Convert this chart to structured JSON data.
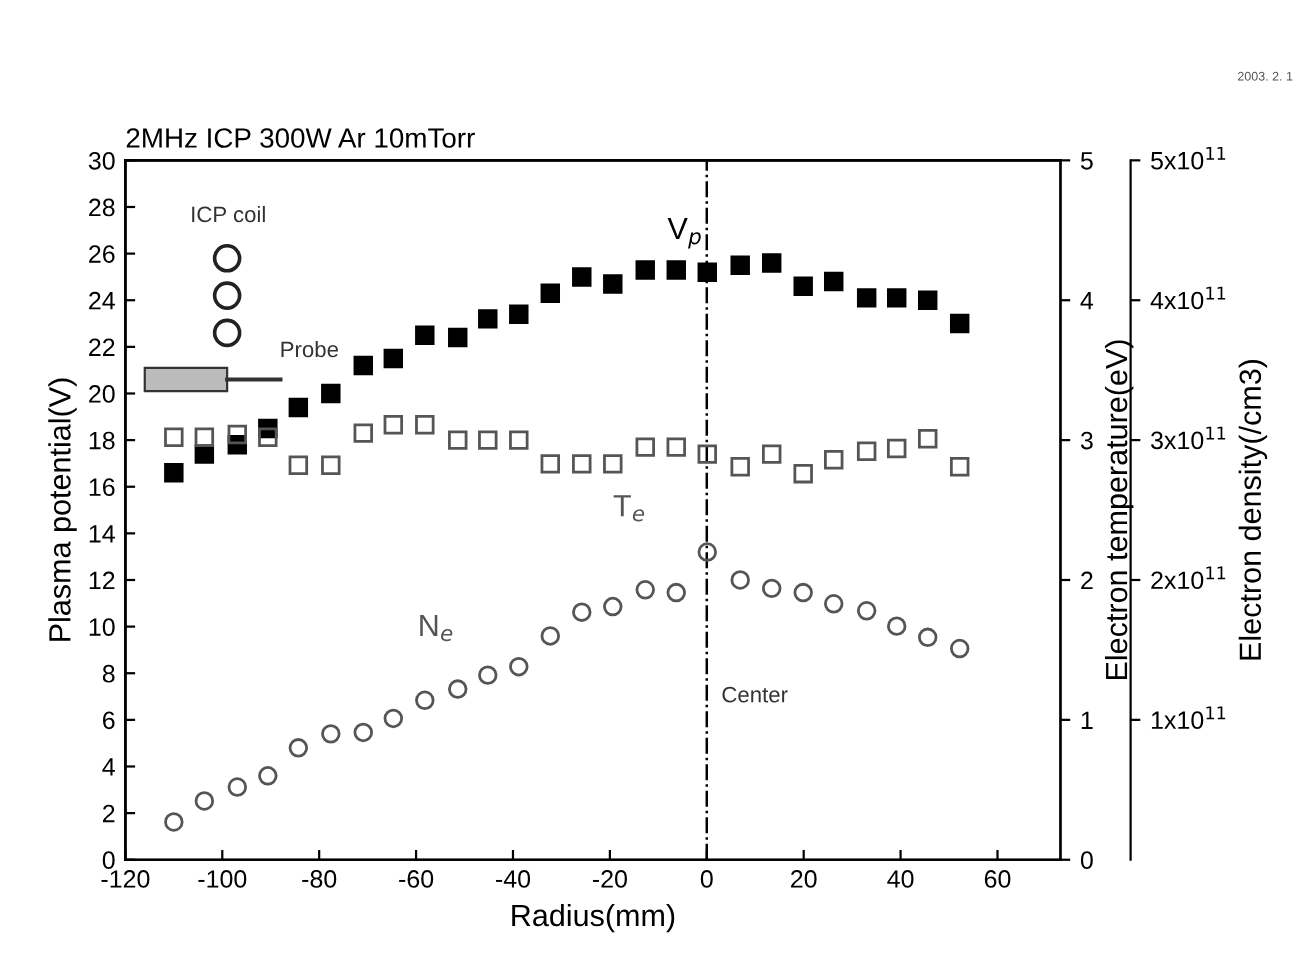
{
  "chart_data": {
    "type": "scatter",
    "title": "2MHz ICP 300W Ar 10mTorr",
    "xlabel": "Radius(mm)",
    "ylabel": "Plasma potential(V)",
    "y2label": "Electron temperature(eV)",
    "y3label": "Electron density(/cm3)",
    "x": [
      -110,
      -103.7,
      -96.9,
      -90.6,
      -84.3,
      -77.6,
      -70.9,
      -64.7,
      -58.2,
      -51.4,
      -45.2,
      -38.8,
      -32.3,
      -25.8,
      -19.4,
      -12.7,
      -6.3,
      0.1,
      6.9,
      13.4,
      19.9,
      26.2,
      33.0,
      39.2,
      45.6,
      52.2
    ],
    "series": [
      {
        "name": "V$_{p}$",
        "color": "#000000",
        "marker": "square",
        "values": [
          16.6,
          17.4,
          17.8,
          18.5,
          19.4,
          20.0,
          21.2,
          21.5,
          22.5,
          22.4,
          23.2,
          23.4,
          24.3,
          25.0,
          24.7,
          25.3,
          25.3,
          25.2,
          25.5,
          25.6,
          24.6,
          24.8,
          24.1,
          24.1,
          24.0,
          23.0
        ]
      },
      {
        "name": "T$_{e}$",
        "color": "#555555",
        "marker": "square",
        "axis": "y2",
        "values": [
          3.02,
          3.02,
          3.04,
          3.02,
          2.82,
          2.82,
          3.05,
          3.11,
          3.11,
          3.0,
          3.0,
          3.0,
          2.83,
          2.83,
          2.83,
          2.95,
          2.95,
          2.9,
          2.81,
          2.9,
          2.76,
          2.86,
          2.92,
          2.94,
          3.01,
          2.81
        ]
      },
      {
        "name": "N$_{e}$",
        "color": "#555555",
        "marker": "circle",
        "axis": "y3",
        "values": [
          27000000000.0,
          42000000000.0,
          52000000000.0,
          60000000000.0,
          80000000000.0,
          90000000000.0,
          91000000000.0,
          101000000000.0,
          114000000000.0,
          122000000000.0,
          132000000000.0,
          138000000000.0,
          160000000000.0,
          177000000000.0,
          181000000000.0,
          193000000000.0,
          191000000000.0,
          220000000000.0,
          200000000000.0,
          194000000000.0,
          191000000000.0,
          183000000000.0,
          178000000000.0,
          167000000000.0,
          159000000000.0,
          151000000000.0
        ]
      }
    ],
    "xlim": [
      -120,
      73
    ],
    "xticks": [
      -120,
      -100,
      -80,
      -60,
      -40,
      -20,
      0,
      20,
      40,
      60
    ],
    "ylim": [
      0,
      30
    ],
    "yticks": [
      0,
      2,
      4,
      6,
      8,
      10,
      12,
      14,
      16,
      18,
      20,
      22,
      24,
      26,
      28,
      30
    ],
    "y2lim": [
      0,
      5
    ],
    "y2ticks": [
      0,
      1,
      2,
      3,
      4,
      5
    ],
    "y3lim": [
      0,
      500000000000.0
    ],
    "y3ticks": [
      {
        "value": 100000000000.0,
        "label": "1x10$^{11}$"
      },
      {
        "value": 200000000000.0,
        "label": "2x10$^{11}$"
      },
      {
        "value": 300000000000.0,
        "label": "3x10$^{11}$"
      },
      {
        "value": 400000000000.0,
        "label": "4x10$^{11}$"
      },
      {
        "value": 500000000000.0,
        "label": "5x10$^{11}$"
      }
    ],
    "ref_lines": [
      {
        "axis": "x",
        "value": 0,
        "line_style": "dashdot",
        "color": "#000000",
        "label": "Center"
      }
    ],
    "annotations": [
      "ICP coil",
      "Probe",
      "2003. 2. 1"
    ],
    "grid": false,
    "legend": false
  }
}
